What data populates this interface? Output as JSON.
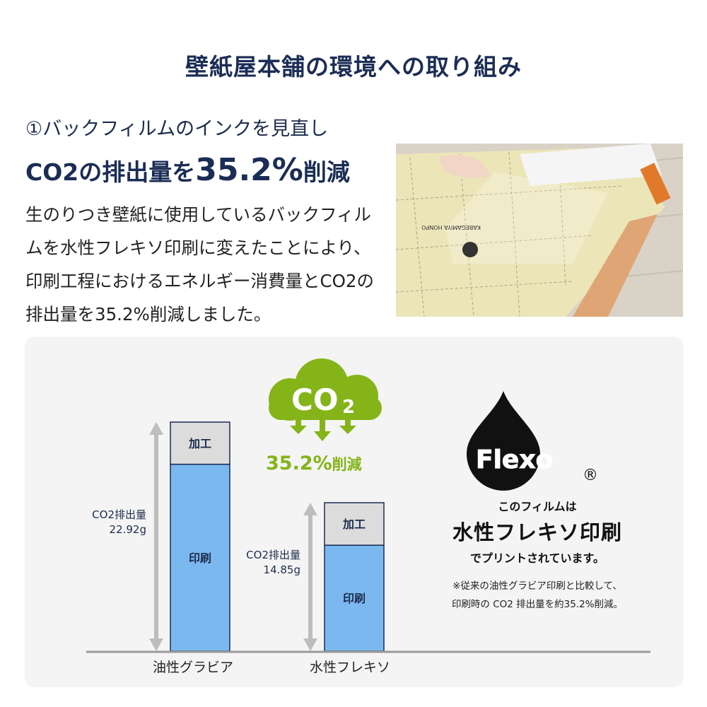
{
  "title": "壁紙屋本舗の環境への取り組み",
  "section": {
    "subtitle": "①バックフィルムのインクを見直し",
    "headline_pre": "CO2の排出量を",
    "headline_value": "35.2%",
    "headline_post": "削減",
    "body": "生のりつき壁紙に使用しているバックフィルムを水性フレキソ印刷に変えたことにより、印刷工程におけるエネルギー消費量とCO2の排出量を35.2%削減しました。"
  },
  "photo": {
    "film_text": "KABEGAMIYA HONPO"
  },
  "co2_badge": {
    "icon": "co2-cloud-down-arrows-icon",
    "text_main": "CO",
    "text_sub": "2",
    "reduction_value": "35.2%",
    "reduction_label": "削減",
    "color": "#84b418"
  },
  "flexo": {
    "logo_text": "Flexo",
    "registered": "®",
    "line1": "このフィルムは",
    "line2": "水性フレキソ印刷",
    "line3": "でプリントされています。",
    "note1": "※従来の油性グラビア印刷と比較して、",
    "note2": "印刷時の CO2 排出量を約35.2%削減。"
  },
  "chart_data": {
    "type": "bar",
    "stacked": true,
    "categories": [
      "油性グラビア",
      "水性フレキソ"
    ],
    "series": [
      {
        "name": "印刷",
        "values": [
          18.7,
          10.6
        ],
        "color": "#7cb8f0"
      },
      {
        "name": "加工",
        "values": [
          4.2,
          4.2
        ],
        "color": "#dcdcdc"
      }
    ],
    "totals": [
      22.92,
      14.85
    ],
    "total_label": "CO2排出量",
    "total_text": [
      "22.92g",
      "14.85g"
    ],
    "unit": "g",
    "ylim": [
      0,
      23
    ],
    "grid": false,
    "legend": "none"
  }
}
